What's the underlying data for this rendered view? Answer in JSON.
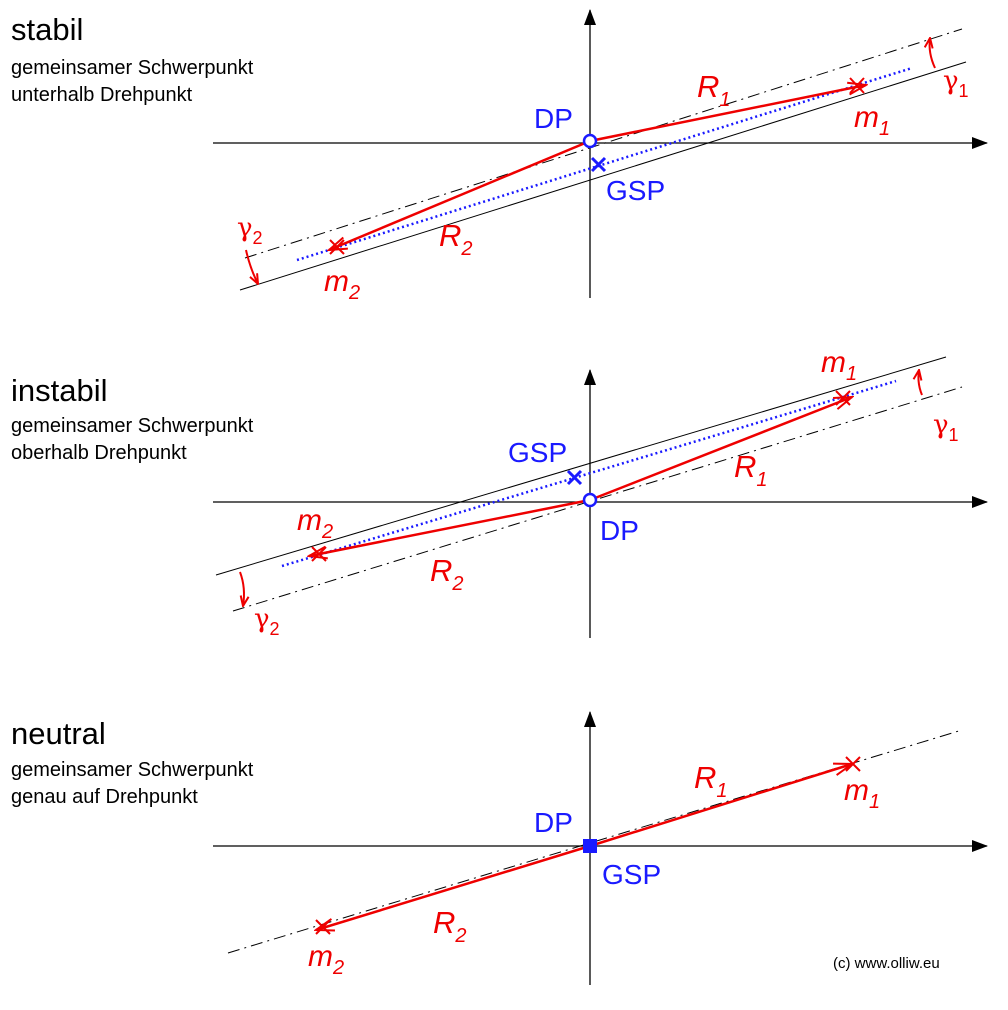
{
  "panels": [
    {
      "title": "stabil",
      "line1": "gemeinsamer Schwerpunkt",
      "line2": "unterhalb Drehpunkt"
    },
    {
      "title": "instabil",
      "line1": "gemeinsamer Schwerpunkt",
      "line2": "oberhalb Drehpunkt"
    },
    {
      "title": "neutral",
      "line1": "gemeinsamer Schwerpunkt",
      "line2": "genau auf Drehpunkt"
    }
  ],
  "labels": {
    "dp": "DP",
    "gsp": "GSP",
    "m": "m",
    "r": "R",
    "gamma": "γ",
    "sub1": "1",
    "sub2": "2"
  },
  "colors": {
    "axes": "#000000",
    "masses": "#ee0000",
    "center": "#1a1aff"
  },
  "copyright": "(c) www.olliw.eu"
}
